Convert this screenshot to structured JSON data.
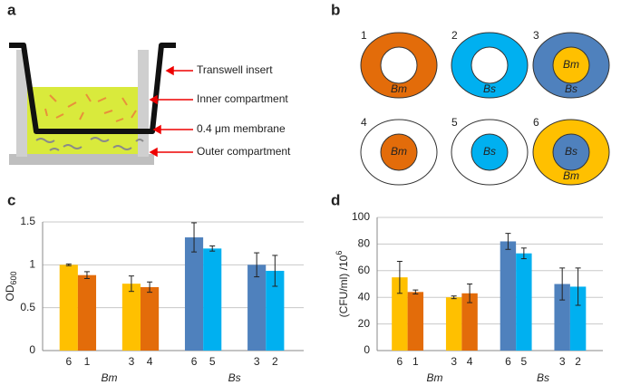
{
  "panel_a": {
    "label": "a",
    "callouts": [
      "Transwell insert",
      "Inner compartment",
      "0.4 μm membrane",
      "Outer compartment"
    ]
  },
  "panel_b": {
    "label": "b",
    "wells": [
      {
        "number": "1",
        "outer_color": "#e36c0a",
        "inner_color": "#ffffff",
        "outer_label": "Bm"
      },
      {
        "number": "2",
        "outer_color": "#00b0f0",
        "inner_color": "#ffffff",
        "outer_label": "Bs"
      },
      {
        "number": "3",
        "outer_color": "#4f81bd",
        "inner_color": "#ffc000",
        "outer_label": "Bs",
        "inner_label": "Bm"
      },
      {
        "number": "4",
        "outer_color": "#ffffff",
        "inner_color": "#e36c0a",
        "inner_label": "Bm"
      },
      {
        "number": "5",
        "outer_color": "#ffffff",
        "inner_color": "#00b0f0",
        "inner_label": "Bs"
      },
      {
        "number": "6",
        "outer_color": "#ffc000",
        "inner_color": "#4f81bd",
        "outer_label": "Bm",
        "inner_label": "Bs"
      }
    ]
  },
  "chart_data": [
    {
      "type": "bar",
      "panel_label": "c",
      "ylabel": "OD",
      "ylabel_sub": "600",
      "categories": [
        "6",
        "1",
        "3",
        "4",
        "6",
        "5",
        "3",
        "2"
      ],
      "values": [
        1.0,
        0.88,
        0.78,
        0.74,
        1.32,
        1.19,
        1.0,
        0.93
      ],
      "errors": [
        0.01,
        0.04,
        0.09,
        0.06,
        0.17,
        0.03,
        0.14,
        0.18
      ],
      "colors": [
        "#ffc000",
        "#e36c0a",
        "#ffc000",
        "#e36c0a",
        "#4f81bd",
        "#00b0f0",
        "#4f81bd",
        "#00b0f0"
      ],
      "groups": [
        "Bm",
        "Bs"
      ],
      "ylim": [
        0,
        1.5
      ],
      "yticks": [
        0,
        0.5,
        1,
        1.5
      ],
      "grid": true
    },
    {
      "type": "bar",
      "panel_label": "d",
      "ylabel": "(CFU/ml) /10",
      "ylabel_sup": "6",
      "categories": [
        "6",
        "1",
        "3",
        "4",
        "6",
        "5",
        "3",
        "2"
      ],
      "values": [
        55,
        44,
        40,
        43,
        82,
        73,
        50,
        48
      ],
      "errors": [
        12,
        1.5,
        1,
        7,
        6,
        4,
        12,
        14
      ],
      "colors": [
        "#ffc000",
        "#e36c0a",
        "#ffc000",
        "#e36c0a",
        "#4f81bd",
        "#00b0f0",
        "#4f81bd",
        "#00b0f0"
      ],
      "groups": [
        "Bm",
        "Bs"
      ],
      "ylim": [
        0,
        100
      ],
      "yticks": [
        0,
        20,
        40,
        60,
        80,
        100
      ],
      "grid": true
    }
  ]
}
